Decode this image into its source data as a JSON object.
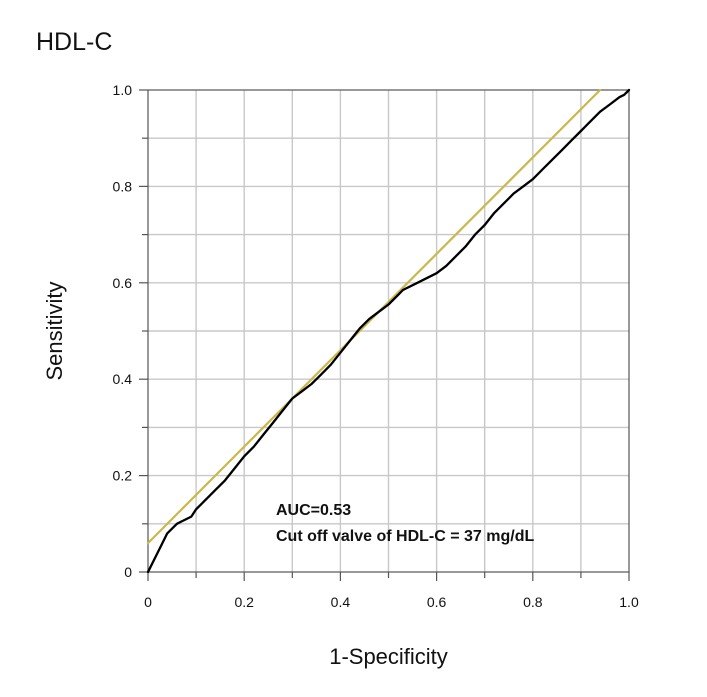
{
  "chart_data": {
    "type": "line",
    "title": "HDL-C",
    "xlabel": "1-Specificity",
    "ylabel": "Sensitivity",
    "xlim": [
      0,
      1.0
    ],
    "ylim": [
      0,
      1.0
    ],
    "grid": true,
    "x_tick_labels": [
      "0",
      "0.2",
      "0.4",
      "0.6",
      "0.8",
      "1.0"
    ],
    "y_tick_labels": [
      "0",
      "0.2",
      "0.4",
      "0.6",
      "0.8",
      "1.0"
    ],
    "annotations": [
      "AUC=0.53",
      "Cut off valve of HDL-C = 37 mg/dL"
    ],
    "series": [
      {
        "color": "#000000",
        "x": [
          0.0,
          0.005,
          0.01,
          0.02,
          0.03,
          0.04,
          0.05,
          0.06,
          0.07,
          0.08,
          0.09,
          0.1,
          0.12,
          0.14,
          0.16,
          0.18,
          0.2,
          0.22,
          0.24,
          0.26,
          0.28,
          0.3,
          0.32,
          0.34,
          0.36,
          0.38,
          0.4,
          0.42,
          0.44,
          0.46,
          0.48,
          0.5,
          0.52,
          0.53,
          0.56,
          0.6,
          0.62,
          0.64,
          0.66,
          0.68,
          0.7,
          0.72,
          0.74,
          0.76,
          0.78,
          0.8,
          0.82,
          0.84,
          0.86,
          0.88,
          0.9,
          0.92,
          0.94,
          0.96,
          0.98,
          0.99,
          1.0
        ],
        "y": [
          0.0,
          0.01,
          0.02,
          0.04,
          0.06,
          0.08,
          0.09,
          0.1,
          0.105,
          0.11,
          0.115,
          0.13,
          0.15,
          0.17,
          0.19,
          0.215,
          0.24,
          0.26,
          0.285,
          0.31,
          0.335,
          0.36,
          0.375,
          0.39,
          0.41,
          0.43,
          0.455,
          0.48,
          0.505,
          0.525,
          0.54,
          0.555,
          0.575,
          0.585,
          0.6,
          0.62,
          0.635,
          0.655,
          0.675,
          0.7,
          0.72,
          0.745,
          0.765,
          0.785,
          0.8,
          0.815,
          0.835,
          0.855,
          0.875,
          0.895,
          0.915,
          0.935,
          0.955,
          0.97,
          0.985,
          0.99,
          1.0
        ]
      },
      {
        "color": "#c9b84a",
        "x": [
          0.0,
          0.94
        ],
        "y": [
          0.06,
          1.0
        ]
      }
    ]
  }
}
